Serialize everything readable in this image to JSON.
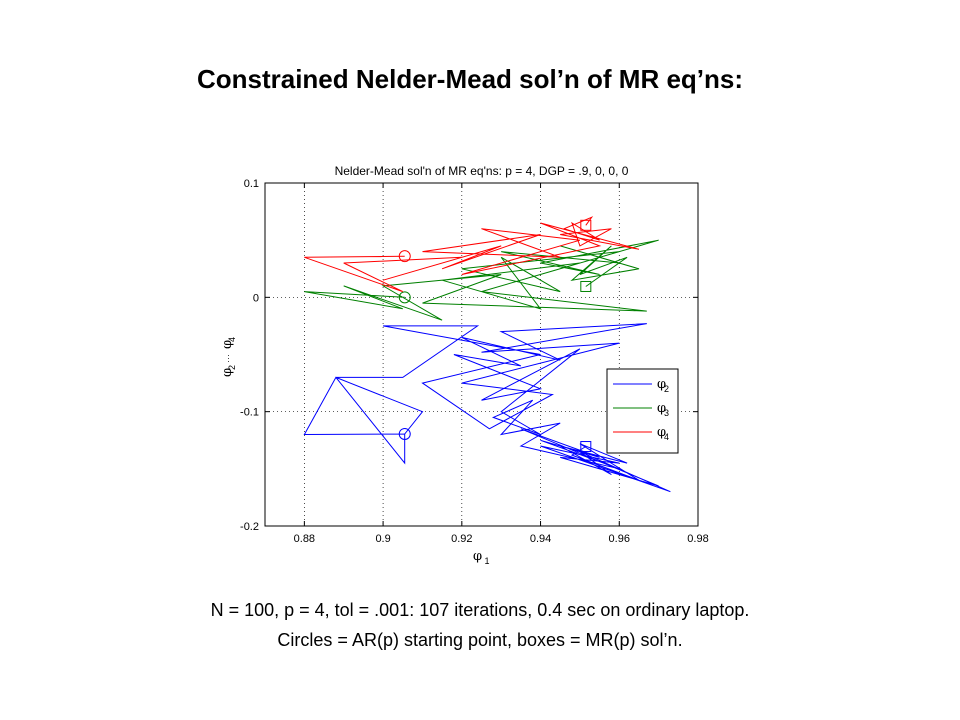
{
  "slide": {
    "title": "Constrained Nelder-Mead sol’n of MR eq’ns:",
    "caption_line1": "N = 100, p = 4, tol = .001:  107 iterations, 0.4 sec on ordinary laptop.",
    "caption_line2": "Circles = AR(p) starting point, boxes = MR(p) sol’n."
  },
  "chart_data": {
    "type": "line",
    "title": "Nelder-Mead sol'n of MR eq'ns: p = 4, DGP = .9, 0, 0, 0",
    "xlabel": {
      "symbol": "φ",
      "sub": "1"
    },
    "ylabel": {
      "symbol": "φ",
      "sub_start": "2",
      "dots": "···",
      "symbol2": "φ",
      "sub_end": "4"
    },
    "xlim": [
      0.87,
      0.98
    ],
    "ylim": [
      -0.2,
      0.1
    ],
    "xticks": [
      0.88,
      0.9,
      0.92,
      0.94,
      0.96,
      0.98
    ],
    "xtick_labels": [
      "0.88",
      "0.9",
      "0.92",
      "0.94",
      "0.96",
      "0.98"
    ],
    "yticks": [
      -0.2,
      -0.1,
      0,
      0.1
    ],
    "ytick_labels": [
      "-0.2",
      "-0.1",
      "0",
      "0.1"
    ],
    "grid": "dotted",
    "legend_placement": "lower-right",
    "series": [
      {
        "name": "φ2",
        "sub": "2",
        "color": "#0000ff",
        "start": [
          0.9055,
          -0.1195
        ],
        "end": [
          0.9515,
          -0.1305
        ],
        "points": [
          [
            0.9055,
            -0.1195
          ],
          [
            0.88,
            -0.12
          ],
          [
            0.888,
            -0.07
          ],
          [
            0.9055,
            -0.145
          ],
          [
            0.9055,
            -0.1195
          ],
          [
            0.91,
            -0.1
          ],
          [
            0.888,
            -0.07
          ],
          [
            0.905,
            -0.07
          ],
          [
            0.924,
            -0.025
          ],
          [
            0.9,
            -0.025
          ],
          [
            0.94,
            -0.05
          ],
          [
            0.91,
            -0.075
          ],
          [
            0.927,
            -0.115
          ],
          [
            0.943,
            -0.085
          ],
          [
            0.92,
            -0.075
          ],
          [
            0.96,
            -0.04
          ],
          [
            0.925,
            -0.048
          ],
          [
            0.967,
            -0.023
          ],
          [
            0.93,
            -0.03
          ],
          [
            0.945,
            -0.055
          ],
          [
            0.92,
            -0.035
          ],
          [
            0.935,
            -0.06
          ],
          [
            0.918,
            -0.05
          ],
          [
            0.94,
            -0.08
          ],
          [
            0.925,
            -0.09
          ],
          [
            0.95,
            -0.045
          ],
          [
            0.93,
            -0.1
          ],
          [
            0.94,
            -0.12
          ],
          [
            0.928,
            -0.105
          ],
          [
            0.938,
            -0.09
          ],
          [
            0.93,
            -0.12
          ],
          [
            0.945,
            -0.11
          ],
          [
            0.935,
            -0.13
          ],
          [
            0.96,
            -0.15
          ],
          [
            0.94,
            -0.125
          ],
          [
            0.955,
            -0.14
          ],
          [
            0.935,
            -0.115
          ],
          [
            0.97,
            -0.165
          ],
          [
            0.945,
            -0.14
          ],
          [
            0.96,
            -0.145
          ],
          [
            0.94,
            -0.13
          ],
          [
            0.973,
            -0.17
          ],
          [
            0.95,
            -0.135
          ],
          [
            0.958,
            -0.155
          ],
          [
            0.945,
            -0.13
          ],
          [
            0.962,
            -0.145
          ],
          [
            0.95,
            -0.128
          ],
          [
            0.965,
            -0.16
          ],
          [
            0.948,
            -0.138
          ],
          [
            0.9515,
            -0.1305
          ]
        ]
      },
      {
        "name": "φ3",
        "sub": "3",
        "color": "#008000",
        "start": [
          0.9055,
          0
        ],
        "end": [
          0.9515,
          0.0095
        ],
        "points": [
          [
            0.9055,
            0
          ],
          [
            0.88,
            0.005
          ],
          [
            0.905,
            -0.01
          ],
          [
            0.89,
            0.01
          ],
          [
            0.915,
            -0.02
          ],
          [
            0.9,
            0.01
          ],
          [
            0.93,
            0.02
          ],
          [
            0.91,
            -0.005
          ],
          [
            0.967,
            -0.012
          ],
          [
            0.925,
            0.005
          ],
          [
            0.95,
            0.03
          ],
          [
            0.915,
            0.015
          ],
          [
            0.94,
            -0.01
          ],
          [
            0.93,
            0.035
          ],
          [
            0.945,
            0.005
          ],
          [
            0.92,
            0.025
          ],
          [
            0.96,
            0.04
          ],
          [
            0.935,
            0.015
          ],
          [
            0.97,
            0.05
          ],
          [
            0.94,
            0.03
          ],
          [
            0.955,
            0.02
          ],
          [
            0.93,
            0.04
          ],
          [
            0.96,
            0.03
          ],
          [
            0.945,
            0.045
          ],
          [
            0.965,
            0.025
          ],
          [
            0.948,
            0.015
          ],
          [
            0.958,
            0.045
          ],
          [
            0.95,
            0.02
          ],
          [
            0.962,
            0.035
          ],
          [
            0.9515,
            0.0095
          ]
        ]
      },
      {
        "name": "φ4",
        "sub": "4",
        "color": "#ff0000",
        "start": [
          0.9055,
          0.036
        ],
        "end": [
          0.9515,
          0.063
        ],
        "points": [
          [
            0.9055,
            0.036
          ],
          [
            0.88,
            0.035
          ],
          [
            0.905,
            0.005
          ],
          [
            0.89,
            0.03
          ],
          [
            0.92,
            0.035
          ],
          [
            0.9,
            0.015
          ],
          [
            0.93,
            0.045
          ],
          [
            0.915,
            0.025
          ],
          [
            0.94,
            0.055
          ],
          [
            0.91,
            0.04
          ],
          [
            0.945,
            0.035
          ],
          [
            0.925,
            0.06
          ],
          [
            0.95,
            0.05
          ],
          [
            0.92,
            0.02
          ],
          [
            0.955,
            0.045
          ],
          [
            0.94,
            0.065
          ],
          [
            0.965,
            0.042
          ],
          [
            0.945,
            0.055
          ],
          [
            0.958,
            0.06
          ],
          [
            0.95,
            0.045
          ],
          [
            0.948,
            0.065
          ],
          [
            0.955,
            0.05
          ],
          [
            0.946,
            0.06
          ],
          [
            0.953,
            0.07
          ],
          [
            0.9515,
            0.063
          ]
        ]
      }
    ]
  }
}
